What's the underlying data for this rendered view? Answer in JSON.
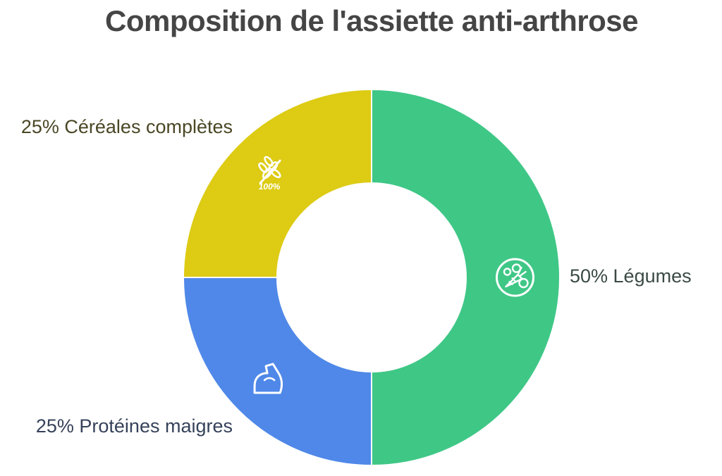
{
  "chart_data": {
    "type": "pie",
    "title": "Composition de l'assiette anti-arthrose",
    "donut": true,
    "categories": [
      "Légumes",
      "Protéines maigres",
      "Céréales complètes"
    ],
    "values": [
      50,
      25,
      25
    ],
    "slices": [
      {
        "name": "Légumes",
        "value": 50,
        "label": "50% Légumes",
        "color": "#3FC786",
        "label_color": "#3B4A44",
        "icon": "vegetables-icon"
      },
      {
        "name": "Protéines maigres",
        "value": 25,
        "label": "25% Protéines maigres",
        "color": "#4F88E8",
        "label_color": "#36425A",
        "icon": "flexed-arm-icon"
      },
      {
        "name": "Céréales complètes",
        "value": 25,
        "label": "25% Céréales complètes",
        "color": "#DDCB14",
        "label_color": "#4A4725",
        "icon": "wheat-100-icon",
        "icon_text": "100%"
      }
    ]
  }
}
